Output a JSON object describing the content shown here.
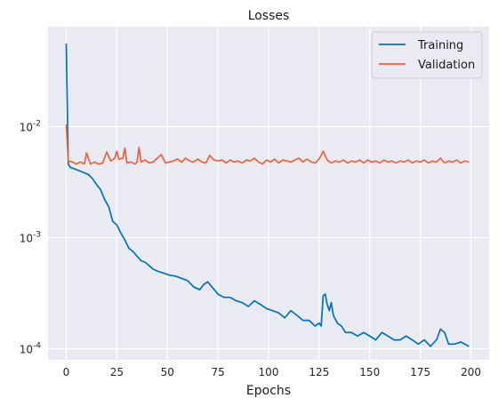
{
  "chart_data": {
    "type": "line",
    "title": "Losses",
    "xlabel": "Epochs",
    "ylabel": "",
    "yscale": "log",
    "xlim": [
      -9,
      209
    ],
    "ylim_log10": [
      -4.1,
      -1.1
    ],
    "x_ticks": [
      0,
      25,
      50,
      75,
      100,
      125,
      150,
      175,
      200
    ],
    "y_ticks": [
      {
        "value": 0.01,
        "exponent": "-2"
      },
      {
        "value": 0.001,
        "exponent": "-3"
      },
      {
        "value": 0.0001,
        "exponent": "-4"
      }
    ],
    "tick_base": "10",
    "grid": true,
    "background": "#eaeaf2",
    "legend_position": "top-right",
    "series": [
      {
        "name": "Training",
        "color": "#0072bd",
        "points": [
          [
            0,
            0.056
          ],
          [
            1,
            0.0046
          ],
          [
            2,
            0.0043
          ],
          [
            5,
            0.0041
          ],
          [
            8,
            0.0039
          ],
          [
            11,
            0.0037
          ],
          [
            13,
            0.0034
          ],
          [
            15,
            0.003
          ],
          [
            17,
            0.0027
          ],
          [
            19,
            0.0022
          ],
          [
            21,
            0.0019
          ],
          [
            23,
            0.0014
          ],
          [
            25,
            0.0013
          ],
          [
            27,
            0.0011
          ],
          [
            29,
            0.00095
          ],
          [
            31,
            0.0008
          ],
          [
            33,
            0.00075
          ],
          [
            35,
            0.00068
          ],
          [
            37,
            0.00062
          ],
          [
            39,
            0.0006
          ],
          [
            41,
            0.00056
          ],
          [
            43,
            0.00052
          ],
          [
            45,
            0.0005
          ],
          [
            48,
            0.00048
          ],
          [
            51,
            0.00046
          ],
          [
            54,
            0.00045
          ],
          [
            57,
            0.00043
          ],
          [
            60,
            0.00041
          ],
          [
            63,
            0.00036
          ],
          [
            66,
            0.00034
          ],
          [
            68,
            0.00038
          ],
          [
            70,
            0.0004
          ],
          [
            72,
            0.00036
          ],
          [
            75,
            0.00031
          ],
          [
            78,
            0.00029
          ],
          [
            81,
            0.00029
          ],
          [
            84,
            0.00027
          ],
          [
            87,
            0.00026
          ],
          [
            90,
            0.00024
          ],
          [
            93,
            0.00027
          ],
          [
            96,
            0.00025
          ],
          [
            99,
            0.00023
          ],
          [
            102,
            0.00022
          ],
          [
            105,
            0.00021
          ],
          [
            108,
            0.00019
          ],
          [
            111,
            0.00022
          ],
          [
            114,
            0.0002
          ],
          [
            117,
            0.00018
          ],
          [
            120,
            0.00018
          ],
          [
            123,
            0.00016
          ],
          [
            125,
            0.00017
          ],
          [
            126,
            0.00016
          ],
          [
            127,
            0.0003
          ],
          [
            128,
            0.00031
          ],
          [
            129,
            0.00025
          ],
          [
            130,
            0.00022
          ],
          [
            131,
            0.00026
          ],
          [
            132,
            0.0002
          ],
          [
            134,
            0.00017
          ],
          [
            136,
            0.00016
          ],
          [
            138,
            0.00014
          ],
          [
            141,
            0.00014
          ],
          [
            144,
            0.00013
          ],
          [
            147,
            0.00014
          ],
          [
            150,
            0.00013
          ],
          [
            153,
            0.00012
          ],
          [
            156,
            0.00014
          ],
          [
            159,
            0.00013
          ],
          [
            162,
            0.00012
          ],
          [
            165,
            0.00012
          ],
          [
            168,
            0.00013
          ],
          [
            171,
            0.00012
          ],
          [
            174,
            0.00011
          ],
          [
            177,
            0.00012
          ],
          [
            180,
            0.000105
          ],
          [
            183,
            0.00012
          ],
          [
            185,
            0.00015
          ],
          [
            187,
            0.00014
          ],
          [
            189,
            0.00011
          ],
          [
            192,
            0.00011
          ],
          [
            195,
            0.000115
          ],
          [
            197,
            0.00011
          ],
          [
            199,
            0.000105
          ]
        ]
      },
      {
        "name": "Validation",
        "color": "#f0603a",
        "points": [
          [
            0,
            0.0105
          ],
          [
            1,
            0.0049
          ],
          [
            3,
            0.0048
          ],
          [
            5,
            0.0046
          ],
          [
            7,
            0.0048
          ],
          [
            9,
            0.0046
          ],
          [
            10,
            0.0058
          ],
          [
            12,
            0.0046
          ],
          [
            14,
            0.0048
          ],
          [
            16,
            0.0046
          ],
          [
            18,
            0.0047
          ],
          [
            20,
            0.0059
          ],
          [
            22,
            0.0049
          ],
          [
            24,
            0.0052
          ],
          [
            25,
            0.006
          ],
          [
            26,
            0.0051
          ],
          [
            28,
            0.0052
          ],
          [
            29,
            0.0064
          ],
          [
            30,
            0.0047
          ],
          [
            32,
            0.0048
          ],
          [
            34,
            0.0046
          ],
          [
            35,
            0.0048
          ],
          [
            36,
            0.0065
          ],
          [
            37,
            0.0048
          ],
          [
            39,
            0.005
          ],
          [
            41,
            0.0047
          ],
          [
            43,
            0.0048
          ],
          [
            45,
            0.0052
          ],
          [
            47,
            0.0056
          ],
          [
            49,
            0.0047
          ],
          [
            51,
            0.0048
          ],
          [
            53,
            0.0049
          ],
          [
            55,
            0.0051
          ],
          [
            57,
            0.0048
          ],
          [
            59,
            0.0052
          ],
          [
            61,
            0.0049
          ],
          [
            63,
            0.0048
          ],
          [
            65,
            0.0051
          ],
          [
            67,
            0.0048
          ],
          [
            69,
            0.0047
          ],
          [
            71,
            0.0055
          ],
          [
            73,
            0.005
          ],
          [
            75,
            0.0049
          ],
          [
            77,
            0.005
          ],
          [
            79,
            0.0047
          ],
          [
            81,
            0.005
          ],
          [
            83,
            0.0048
          ],
          [
            85,
            0.0049
          ],
          [
            87,
            0.0047
          ],
          [
            89,
            0.005
          ],
          [
            91,
            0.0049
          ],
          [
            93,
            0.0052
          ],
          [
            95,
            0.0048
          ],
          [
            97,
            0.0046
          ],
          [
            99,
            0.005
          ],
          [
            101,
            0.0048
          ],
          [
            103,
            0.0051
          ],
          [
            105,
            0.0047
          ],
          [
            107,
            0.005
          ],
          [
            109,
            0.0049
          ],
          [
            111,
            0.0048
          ],
          [
            113,
            0.005
          ],
          [
            115,
            0.0052
          ],
          [
            117,
            0.0048
          ],
          [
            119,
            0.0051
          ],
          [
            121,
            0.0048
          ],
          [
            123,
            0.0047
          ],
          [
            125,
            0.0051
          ],
          [
            127,
            0.006
          ],
          [
            129,
            0.005
          ],
          [
            131,
            0.0047
          ],
          [
            133,
            0.0049
          ],
          [
            135,
            0.0048
          ],
          [
            137,
            0.005
          ],
          [
            139,
            0.0047
          ],
          [
            141,
            0.0049
          ],
          [
            143,
            0.0048
          ],
          [
            145,
            0.005
          ],
          [
            147,
            0.0047
          ],
          [
            149,
            0.005
          ],
          [
            151,
            0.0048
          ],
          [
            153,
            0.0049
          ],
          [
            155,
            0.0047
          ],
          [
            157,
            0.005
          ],
          [
            159,
            0.0048
          ],
          [
            161,
            0.0049
          ],
          [
            163,
            0.0047
          ],
          [
            165,
            0.0049
          ],
          [
            167,
            0.0048
          ],
          [
            169,
            0.005
          ],
          [
            171,
            0.0047
          ],
          [
            173,
            0.0049
          ],
          [
            175,
            0.0048
          ],
          [
            177,
            0.005
          ],
          [
            179,
            0.0047
          ],
          [
            181,
            0.0049
          ],
          [
            183,
            0.0048
          ],
          [
            185,
            0.0052
          ],
          [
            187,
            0.0047
          ],
          [
            189,
            0.0049
          ],
          [
            191,
            0.0048
          ],
          [
            193,
            0.005
          ],
          [
            195,
            0.0047
          ],
          [
            197,
            0.0049
          ],
          [
            199,
            0.0048
          ]
        ]
      }
    ]
  }
}
